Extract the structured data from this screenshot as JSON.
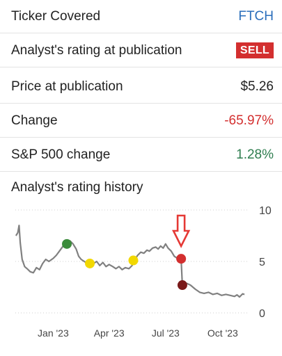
{
  "rows": [
    {
      "label": "Ticker Covered",
      "value": "FTCH",
      "color": "#2a6ebb"
    },
    {
      "label": "Analyst's rating at publication",
      "value": "SELL",
      "color": "#d32f2f"
    },
    {
      "label": "Price at publication",
      "value": "$5.26",
      "color": "#222222"
    },
    {
      "label": "Change",
      "value": "-65.97%",
      "color": "#d32f2f"
    },
    {
      "label": "S&P 500 change",
      "value": "1.28%",
      "color": "#2e7d4f"
    }
  ],
  "history_title": "Analyst's rating history",
  "chart_data": {
    "type": "line",
    "title": "",
    "xlabel": "",
    "ylabel": "",
    "ylim": [
      0,
      10
    ],
    "grid": true,
    "yticks": [
      "10",
      "5",
      "0"
    ],
    "xticks": [
      "Jan '23",
      "Apr '23",
      "Jul '23",
      "Oct '23"
    ],
    "line_color": "#808080",
    "series": [
      {
        "points": [
          [
            "2022-11-02",
            7.5
          ],
          [
            "2022-11-05",
            7.8
          ],
          [
            "2022-11-07",
            8.5
          ],
          [
            "2022-11-09",
            6.8
          ],
          [
            "2022-11-12",
            5.2
          ],
          [
            "2022-11-16",
            4.5
          ],
          [
            "2022-11-20",
            4.3
          ],
          [
            "2022-11-25",
            4.0
          ],
          [
            "2022-11-30",
            3.9
          ],
          [
            "2022-12-05",
            4.4
          ],
          [
            "2022-12-10",
            4.2
          ],
          [
            "2022-12-15",
            4.8
          ],
          [
            "2022-12-20",
            5.2
          ],
          [
            "2022-12-25",
            5.0
          ],
          [
            "2023-01-01",
            5.3
          ],
          [
            "2023-01-06",
            5.6
          ],
          [
            "2023-01-11",
            6.0
          ],
          [
            "2023-01-17",
            6.5
          ],
          [
            "2023-01-23",
            6.8
          ],
          [
            "2023-01-28",
            7.0
          ],
          [
            "2023-02-02",
            6.7
          ],
          [
            "2023-02-07",
            6.2
          ],
          [
            "2023-02-11",
            5.5
          ],
          [
            "2023-02-15",
            5.2
          ],
          [
            "2023-02-20",
            5.0
          ],
          [
            "2023-02-25",
            4.8
          ],
          [
            "2023-03-02",
            5.1
          ],
          [
            "2023-03-07",
            4.8
          ],
          [
            "2023-03-12",
            5.0
          ],
          [
            "2023-03-17",
            4.6
          ],
          [
            "2023-03-22",
            4.9
          ],
          [
            "2023-03-27",
            4.5
          ],
          [
            "2023-04-01",
            4.7
          ],
          [
            "2023-04-07",
            4.5
          ],
          [
            "2023-04-12",
            4.3
          ],
          [
            "2023-04-17",
            4.5
          ],
          [
            "2023-04-22",
            4.2
          ],
          [
            "2023-04-27",
            4.4
          ],
          [
            "2023-05-03",
            4.3
          ],
          [
            "2023-05-08",
            4.6
          ],
          [
            "2023-05-11",
            5.1
          ],
          [
            "2023-05-13",
            5.2
          ],
          [
            "2023-05-17",
            5.6
          ],
          [
            "2023-05-22",
            5.9
          ],
          [
            "2023-05-27",
            5.8
          ],
          [
            "2023-06-01",
            6.1
          ],
          [
            "2023-06-05",
            6.0
          ],
          [
            "2023-06-10",
            6.3
          ],
          [
            "2023-06-15",
            6.4
          ],
          [
            "2023-06-19",
            6.2
          ],
          [
            "2023-06-23",
            6.5
          ],
          [
            "2023-06-27",
            6.3
          ],
          [
            "2023-07-01",
            6.7
          ],
          [
            "2023-07-05",
            6.3
          ],
          [
            "2023-07-10",
            6.0
          ],
          [
            "2023-07-15",
            5.5
          ],
          [
            "2023-07-20",
            5.3
          ],
          [
            "2023-07-26",
            5.26
          ],
          [
            "2023-07-28",
            2.7
          ],
          [
            "2023-08-03",
            2.9
          ],
          [
            "2023-08-10",
            2.7
          ],
          [
            "2023-08-18",
            2.3
          ],
          [
            "2023-08-25",
            2.0
          ],
          [
            "2023-09-01",
            1.9
          ],
          [
            "2023-09-08",
            2.0
          ],
          [
            "2023-09-15",
            1.8
          ],
          [
            "2023-09-22",
            1.9
          ],
          [
            "2023-09-29",
            1.7
          ],
          [
            "2023-10-06",
            1.8
          ],
          [
            "2023-10-13",
            1.7
          ],
          [
            "2023-10-20",
            1.6
          ],
          [
            "2023-10-24",
            1.75
          ],
          [
            "2023-10-28",
            1.55
          ],
          [
            "2023-11-02",
            1.85
          ],
          [
            "2023-11-05",
            1.8
          ]
        ]
      }
    ],
    "rating_markers": [
      {
        "date": "2023-01-23",
        "value": 6.7,
        "color": "#3c8c3c"
      },
      {
        "date": "2023-03-01",
        "value": 4.8,
        "color": "#f2d800"
      },
      {
        "date": "2023-05-10",
        "value": 5.1,
        "color": "#f2d800"
      },
      {
        "date": "2023-07-26",
        "value": 5.26,
        "color": "#d32f2f"
      },
      {
        "date": "2023-07-28",
        "value": 2.7,
        "color": "#7a1a1a"
      }
    ],
    "highlight_arrow": {
      "date": "2023-07-26",
      "color": "#e53935"
    }
  }
}
